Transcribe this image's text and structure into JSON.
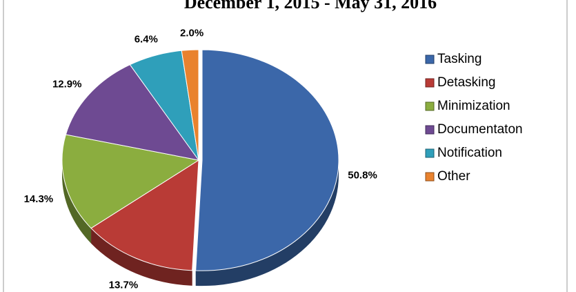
{
  "chart_data": {
    "type": "pie",
    "title": "December 1, 2015 - May 31, 2016",
    "categories": [
      "Tasking",
      "Detasking",
      "Minimization",
      "Documentaton",
      "Notification",
      "Other"
    ],
    "values": [
      50.8,
      13.7,
      14.3,
      12.9,
      6.4,
      2.0
    ],
    "value_labels": [
      "50.8%",
      "13.7%",
      "14.3%",
      "12.9%",
      "6.4%",
      "2.0%"
    ],
    "colors": [
      "#3b67a9",
      "#b93b36",
      "#8bad3f",
      "#6e4a92",
      "#2f9fba",
      "#e9822e"
    ],
    "legend": "right"
  }
}
